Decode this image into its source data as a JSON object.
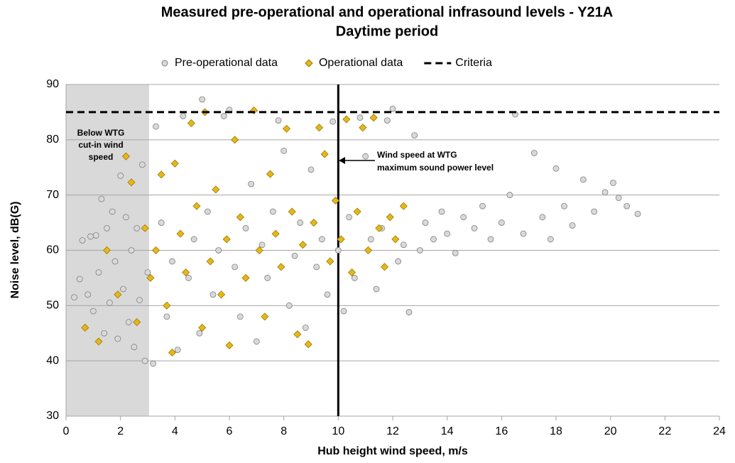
{
  "chart_data": {
    "type": "scatter",
    "title": "Measured pre-operational and operational infrasound levels - Y21A",
    "subtitle": "Daytime period",
    "x_label": "Hub height wind speed, m/s",
    "y_label": "Noise level, dB(G)",
    "xlim": [
      0,
      24
    ],
    "xticks": [
      0,
      2,
      4,
      6,
      8,
      10,
      12,
      14,
      16,
      18,
      20,
      22,
      24
    ],
    "ylim": [
      30,
      90
    ],
    "yticks": [
      30,
      40,
      50,
      60,
      70,
      80,
      90
    ],
    "grid": true,
    "legend": "top",
    "shaded_region": {
      "x": [
        0,
        3.05
      ],
      "color": "#d9d9d9"
    },
    "reference_lines": [
      {
        "x": 10,
        "color": "#000000"
      }
    ],
    "annotations": [
      {
        "lines": [
          "Below WTG",
          "cut-in wind",
          "speed"
        ]
      },
      {
        "lines": [
          "Wind speed at WTG",
          "maximum sound power level"
        ]
      }
    ],
    "series": [
      {
        "name": "Pre-operational data",
        "color": "#d9d9d9",
        "marker": "circle",
        "x": [
          0.3,
          0.5,
          0.6,
          0.8,
          0.9,
          1,
          1.1,
          1.2,
          1.3,
          1.4,
          1.5,
          1.6,
          1.7,
          1.8,
          1.9,
          2,
          2.1,
          2.2,
          2.3,
          2.4,
          2.5,
          2.6,
          2.7,
          2.8,
          2.9,
          3.0,
          3.2,
          3.3,
          3.5,
          3.7,
          3.9,
          4.1,
          4.3,
          4.5,
          4.7,
          4.9,
          5.0,
          5.2,
          5.4,
          5.6,
          5.8,
          6.0,
          6.2,
          6.4,
          6.6,
          6.8,
          7.0,
          7.2,
          7.4,
          7.6,
          7.8,
          8.0,
          8.2,
          8.4,
          8.6,
          8.8,
          9.0,
          9.2,
          9.4,
          9.6,
          9.8,
          10.0,
          10.2,
          10.4,
          10.6,
          10.8,
          11.0,
          11.2,
          11.4,
          11.6,
          11.8,
          12.0,
          12.2,
          12.4,
          12.6,
          12.8,
          13,
          13.2,
          13.5,
          13.8,
          14,
          14.3,
          14.6,
          15,
          15.3,
          15.6,
          16,
          16.3,
          16.5,
          16.8,
          17.2,
          17.5,
          17.8,
          18,
          18.3,
          18.6,
          19,
          19.4,
          19.8,
          20.1,
          20.3,
          20.6,
          21
        ],
        "values": [
          51.5,
          54.8,
          61.8,
          52,
          62.5,
          49,
          62.7,
          56,
          69.3,
          45,
          64,
          50.5,
          67,
          58,
          44,
          73.5,
          53,
          66,
          47,
          60,
          42.5,
          64,
          51,
          75.5,
          40,
          56,
          39.5,
          82.4,
          65,
          48,
          58,
          42,
          84.3,
          55,
          62,
          45,
          87.3,
          67,
          52,
          60,
          84.3,
          85.4,
          57,
          48,
          64,
          72,
          43.5,
          61,
          55,
          67,
          83.5,
          78,
          50,
          59,
          65,
          46,
          74.6,
          57,
          62,
          52,
          83.3,
          60,
          49,
          66,
          55,
          84,
          77,
          62,
          53,
          64,
          83.5,
          85.6,
          58,
          61,
          48.8,
          80.8,
          60,
          65,
          62,
          67,
          63,
          59.5,
          66,
          64,
          68,
          62,
          65,
          70,
          84.6,
          63,
          77.6,
          66,
          62,
          74.8,
          68,
          64.5,
          72.8,
          67,
          70.5,
          72.2,
          69.5,
          68,
          66.6
        ]
      },
      {
        "name": "Operational data",
        "color": "#e5b719",
        "marker": "diamond",
        "x": [
          0.7,
          1.2,
          1.5,
          1.9,
          2.2,
          2.4,
          2.6,
          2.9,
          3.1,
          3.3,
          3.5,
          3.7,
          3.9,
          4.0,
          4.2,
          4.4,
          4.6,
          4.8,
          5,
          5.1,
          5.3,
          5.5,
          5.7,
          5.9,
          6.0,
          6.2,
          6.4,
          6.6,
          6.9,
          7.1,
          7.3,
          7.5,
          7.7,
          7.9,
          8.1,
          8.3,
          8.5,
          8.7,
          8.9,
          9.1,
          9.3,
          9.5,
          9.7,
          9.9,
          10.1,
          10.3,
          10.5,
          10.7,
          10.9,
          11.1,
          11.3,
          11.5,
          11.7,
          11.9,
          12.1,
          12.4
        ],
        "values": [
          46,
          43.5,
          60,
          52,
          77,
          72.3,
          47,
          64,
          55,
          60,
          73.7,
          50,
          41.5,
          75.7,
          63,
          56,
          83,
          68,
          46,
          85,
          58,
          71,
          52,
          62,
          42.8,
          80,
          66,
          55,
          85.3,
          60,
          48,
          73.8,
          63,
          57,
          82,
          67,
          44.8,
          61,
          43,
          65,
          82.2,
          77.4,
          58,
          69,
          62,
          83.7,
          56,
          67,
          82.2,
          60,
          84,
          64,
          57,
          66,
          62,
          68
        ]
      },
      {
        "name": "Criteria",
        "color": "#000000",
        "marker": "dashed-line",
        "x": [
          0,
          24
        ],
        "values": [
          85,
          85
        ]
      }
    ]
  }
}
